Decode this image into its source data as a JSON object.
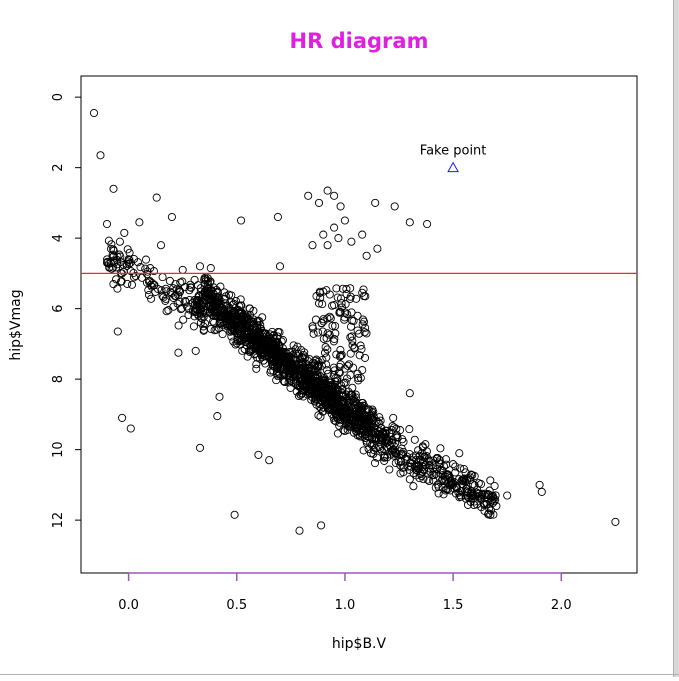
{
  "chart_data": {
    "type": "scatter",
    "title": "HR diagram",
    "title_color": "#e020e0",
    "xlabel": "hip$B.V",
    "ylabel": "hip$Vmag",
    "xlim": [
      -0.22,
      2.35
    ],
    "ylim": [
      13.5,
      -0.6
    ],
    "y_inverted": true,
    "x_ticks": [
      0.0,
      0.5,
      1.0,
      1.5,
      2.0
    ],
    "x_tick_labels": [
      "0.0",
      "0.5",
      "1.0",
      "1.5",
      "2.0"
    ],
    "y_ticks": [
      0,
      2,
      4,
      6,
      8,
      10,
      12
    ],
    "y_tick_labels": [
      "0",
      "2",
      "4",
      "6",
      "8",
      "10",
      "12"
    ],
    "x_axis_color": "#9b59b6",
    "grid": false,
    "legend": "none",
    "hline": {
      "y": 5,
      "color": "#e03030"
    },
    "annotation": {
      "text": "Fake point",
      "x": 1.5,
      "y": 2,
      "marker": "triangle",
      "color": "#1a1aff"
    },
    "point_color": "#000000",
    "series": [
      {
        "marker": "circle",
        "outliers": [
          [
            -0.16,
            0.45
          ],
          [
            -0.13,
            1.65
          ],
          [
            -0.07,
            2.6
          ],
          [
            0.13,
            2.85
          ],
          [
            0.2,
            3.4
          ],
          [
            0.52,
            3.5
          ],
          [
            0.69,
            3.4
          ],
          [
            0.92,
            2.65
          ],
          [
            0.83,
            2.8
          ],
          [
            0.95,
            2.8
          ],
          [
            0.88,
            3.0
          ],
          [
            0.98,
            3.1
          ],
          [
            1.14,
            3.0
          ],
          [
            1.23,
            3.1
          ],
          [
            1.38,
            3.6
          ],
          [
            1.3,
            3.55
          ],
          [
            0.95,
            3.7
          ],
          [
            1.0,
            3.5
          ],
          [
            0.9,
            3.9
          ],
          [
            1.03,
            4.1
          ],
          [
            1.1,
            4.5
          ],
          [
            1.15,
            4.3
          ],
          [
            0.85,
            4.2
          ],
          [
            0.92,
            4.2
          ],
          [
            1.08,
            3.9
          ],
          [
            0.97,
            4.0
          ],
          [
            0.7,
            4.8
          ],
          [
            1.08,
            5.55
          ],
          [
            0.93,
            5.6
          ],
          [
            0.88,
            5.85
          ],
          [
            0.95,
            5.9
          ],
          [
            0.98,
            6.1
          ],
          [
            0.9,
            6.3
          ],
          [
            0.85,
            6.5
          ],
          [
            0.96,
            7.3
          ],
          [
            1.0,
            7.7
          ],
          [
            0.93,
            8.1
          ],
          [
            0.8,
            8.4
          ],
          [
            1.3,
            8.4
          ],
          [
            -0.05,
            6.65
          ],
          [
            -0.03,
            9.1
          ],
          [
            0.01,
            9.4
          ],
          [
            0.23,
            7.25
          ],
          [
            0.31,
            7.2
          ],
          [
            0.42,
            8.5
          ],
          [
            0.41,
            9.05
          ],
          [
            0.33,
            9.95
          ],
          [
            0.49,
            11.85
          ],
          [
            0.6,
            10.15
          ],
          [
            0.65,
            10.3
          ],
          [
            0.79,
            12.3
          ],
          [
            0.89,
            12.15
          ],
          [
            1.9,
            11.0
          ],
          [
            1.91,
            11.2
          ],
          [
            2.25,
            12.05
          ],
          [
            1.7,
            11.6
          ],
          [
            1.75,
            11.3
          ],
          [
            1.65,
            11.25
          ],
          [
            1.6,
            10.75
          ],
          [
            1.55,
            10.55
          ],
          [
            0.15,
            4.2
          ],
          [
            0.0,
            4.6
          ],
          [
            -0.1,
            3.6
          ],
          [
            -0.02,
            3.85
          ],
          [
            0.05,
            3.55
          ],
          [
            -0.04,
            4.1
          ],
          [
            0.33,
            4.8
          ],
          [
            0.1,
            4.85
          ],
          [
            0.25,
            4.9
          ],
          [
            0.38,
            4.85
          ]
        ]
      }
    ]
  }
}
